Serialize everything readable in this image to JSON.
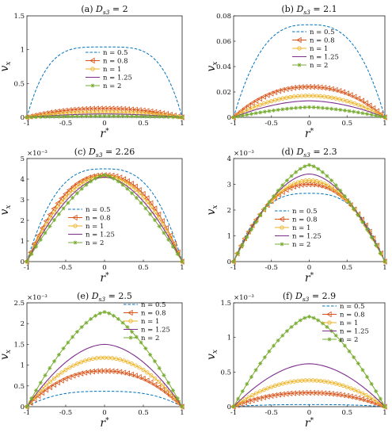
{
  "figure": {
    "legend_labels": [
      "n = 0.5",
      "n = 0.8",
      "n = 1",
      "n = 1.25",
      "n = 2"
    ],
    "series_colors": [
      "#0072BD",
      "#D95319",
      "#EDB120",
      "#7E2F8E",
      "#77AC30"
    ],
    "series_styles": [
      "dashed",
      "left-triangle-marker",
      "circle-marker",
      "solid",
      "star-marker"
    ]
  },
  "chart_data": [
    {
      "type": "line",
      "panel": "(a)",
      "title": "(a) D_s3 = 2",
      "title_prefix": "(a) ",
      "title_value": "= 2",
      "xlabel": "r*",
      "ylabel": "v_x",
      "exponent": "",
      "xlim": [
        -1,
        1
      ],
      "ylim": [
        0,
        1.5
      ],
      "xticks": [
        -1,
        -0.5,
        0,
        0.5,
        1
      ],
      "yticks": [
        0,
        0.5,
        1,
        1.5
      ],
      "xticklabels": [
        "-1",
        "-0.5",
        "0",
        "0.5",
        "1"
      ],
      "yticklabels": [
        "0",
        "0.5",
        "1",
        "1.5"
      ],
      "legend_position": "center",
      "series": [
        {
          "name": "n = 0.5",
          "peak": 1.04,
          "p": 4.0
        },
        {
          "name": "n = 0.8",
          "peak": 0.13,
          "p": 2.2
        },
        {
          "name": "n = 1",
          "peak": 0.08,
          "p": 2.0
        },
        {
          "name": "n = 1.25",
          "peak": 0.05,
          "p": 1.8
        },
        {
          "name": "n = 2",
          "peak": 0.02,
          "p": 1.5
        }
      ]
    },
    {
      "type": "line",
      "panel": "(b)",
      "title": "(b) D_s3 = 2.1",
      "title_prefix": "(b) ",
      "title_value": "= 2.1",
      "xlabel": "r*",
      "ylabel": "v_x",
      "exponent": "",
      "xlim": [
        -1,
        1
      ],
      "ylim": [
        0,
        0.08
      ],
      "xticks": [
        -1,
        -0.5,
        0,
        0.5,
        1
      ],
      "yticks": [
        0,
        0.02,
        0.04,
        0.06,
        0.08
      ],
      "xticklabels": [
        "-1",
        "-0.5",
        "0",
        "0.5",
        "1"
      ],
      "yticklabels": [
        "0",
        "0.02",
        "0.04",
        "0.06",
        "0.08"
      ],
      "legend_position": "center-right",
      "series": [
        {
          "name": "n = 0.5",
          "peak": 0.073,
          "p": 2.8
        },
        {
          "name": "n = 0.8",
          "peak": 0.024,
          "p": 2.2
        },
        {
          "name": "n = 1",
          "peak": 0.017,
          "p": 2.0
        },
        {
          "name": "n = 1.25",
          "peak": 0.013,
          "p": 1.8
        },
        {
          "name": "n = 2",
          "peak": 0.008,
          "p": 1.5
        }
      ]
    },
    {
      "type": "line",
      "panel": "(c)",
      "title": "(c) D_s3 = 2.26",
      "title_prefix": "(c) ",
      "title_value": "= 2.26",
      "xlabel": "r*",
      "ylabel": "v_x",
      "exponent": "×10⁻³",
      "xlim": [
        -1,
        1
      ],
      "ylim": [
        0,
        5
      ],
      "xticks": [
        -1,
        -0.5,
        0,
        0.5,
        1
      ],
      "yticks": [
        0,
        1,
        2,
        3,
        4,
        5
      ],
      "xticklabels": [
        "-1",
        "-0.5",
        "0",
        "0.5",
        "1"
      ],
      "yticklabels": [
        "0",
        "1",
        "2",
        "3",
        "4",
        "5"
      ],
      "legend_position": "lower-center",
      "series": [
        {
          "name": "n = 0.5",
          "peak": 4.5,
          "p": 2.8
        },
        {
          "name": "n = 0.8",
          "peak": 4.2,
          "p": 2.2
        },
        {
          "name": "n = 1",
          "peak": 4.15,
          "p": 2.0
        },
        {
          "name": "n = 1.25",
          "peak": 4.1,
          "p": 1.8
        },
        {
          "name": "n = 2",
          "peak": 4.2,
          "p": 1.5
        }
      ]
    },
    {
      "type": "line",
      "panel": "(d)",
      "title": "(d) D_s3 = 2.3",
      "title_prefix": "(d) ",
      "title_value": "= 2.3",
      "xlabel": "r*",
      "ylabel": "v_x",
      "exponent": "×10⁻³",
      "xlim": [
        -1,
        1
      ],
      "ylim": [
        0,
        4
      ],
      "xticks": [
        -1,
        -0.5,
        0,
        0.5,
        1
      ],
      "yticks": [
        0,
        1,
        2,
        3,
        4
      ],
      "xticklabels": [
        "-1",
        "-0.5",
        "0",
        "0.5",
        "1"
      ],
      "yticklabels": [
        "0",
        "1",
        "2",
        "3",
        "4"
      ],
      "legend_position": "lower-center",
      "series": [
        {
          "name": "n = 0.5",
          "peak": 2.65,
          "p": 2.8
        },
        {
          "name": "n = 0.8",
          "peak": 3.0,
          "p": 2.2
        },
        {
          "name": "n = 1",
          "peak": 3.15,
          "p": 2.0
        },
        {
          "name": "n = 1.25",
          "peak": 3.4,
          "p": 1.8
        },
        {
          "name": "n = 2",
          "peak": 3.75,
          "p": 1.5
        }
      ]
    },
    {
      "type": "line",
      "panel": "(e)",
      "title": "(e) D_s3 = 2.5",
      "title_prefix": "(e) ",
      "title_value": "= 2.5",
      "xlabel": "r*",
      "ylabel": "v_x",
      "exponent": "×10⁻³",
      "xlim": [
        -1,
        1
      ],
      "ylim": [
        0,
        2.5
      ],
      "xticks": [
        -1,
        -0.5,
        0,
        0.5,
        1
      ],
      "yticks": [
        0,
        0.5,
        1,
        1.5,
        2,
        2.5
      ],
      "xticklabels": [
        "-1",
        "-0.5",
        "0",
        "0.5",
        "1"
      ],
      "yticklabels": [
        "0",
        "0.5",
        "1",
        "1.5",
        "2",
        "2.5"
      ],
      "legend_position": "top-right",
      "series": [
        {
          "name": "n = 0.5",
          "peak": 0.37,
          "p": 2.8
        },
        {
          "name": "n = 0.8",
          "peak": 0.86,
          "p": 2.2
        },
        {
          "name": "n = 1",
          "peak": 1.18,
          "p": 2.0
        },
        {
          "name": "n = 1.25",
          "peak": 1.5,
          "p": 1.8
        },
        {
          "name": "n = 2",
          "peak": 2.28,
          "p": 1.5
        }
      ]
    },
    {
      "type": "line",
      "panel": "(f)",
      "title": "(f) D_s3 = 2.9",
      "title_prefix": "(f) ",
      "title_value": "= 2.9",
      "xlabel": "r*",
      "ylabel": "v_x",
      "exponent": "×10⁻³",
      "xlim": [
        -1,
        1
      ],
      "ylim": [
        0,
        1.5
      ],
      "xticks": [
        -1,
        -0.5,
        0,
        0.5,
        1
      ],
      "yticks": [
        0,
        0.5,
        1,
        1.5
      ],
      "xticklabels": [
        "-1",
        "-0.5",
        "0",
        "0.5",
        "1"
      ],
      "yticklabels": [
        "0",
        "0.5",
        "1",
        "1.5"
      ],
      "legend_position": "top-right",
      "series": [
        {
          "name": "n = 0.5",
          "peak": 0.03,
          "p": 2.8
        },
        {
          "name": "n = 0.8",
          "peak": 0.2,
          "p": 2.2
        },
        {
          "name": "n = 1",
          "peak": 0.38,
          "p": 2.0
        },
        {
          "name": "n = 1.25",
          "peak": 0.62,
          "p": 1.8
        },
        {
          "name": "n = 2",
          "peak": 1.3,
          "p": 1.5
        }
      ]
    }
  ]
}
